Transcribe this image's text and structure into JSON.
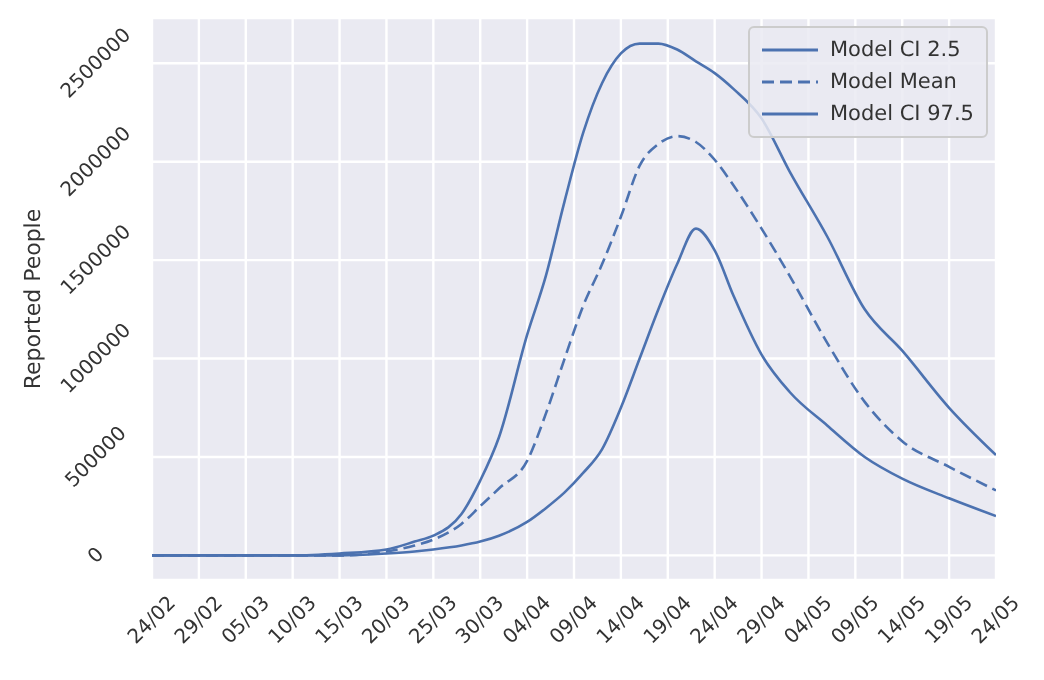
{
  "chart_data": {
    "type": "line",
    "ylabel": "Reported People",
    "x": [
      "--02-24",
      "--03-05",
      "--03-10",
      "--03-15",
      "--03-20",
      "--03-23",
      "--03-25",
      "--03-28",
      "--03-30",
      "--04-01",
      "--04-04",
      "--04-06",
      "--04-08",
      "--04-10",
      "--04-12",
      "--04-14",
      "--04-16",
      "--04-18",
      "--04-20",
      "--04-22",
      "--04-24",
      "--04-26",
      "--04-29",
      "--05-02",
      "--05-06",
      "--05-10",
      "--05-14",
      "--05-19",
      "--05-24"
    ],
    "series": [
      {
        "name": "Model CI 2.5",
        "color": "#4c72b0",
        "line_style": "solid",
        "values": [
          0,
          0,
          0,
          0,
          10000,
          20000,
          30000,
          50000,
          70000,
          100000,
          170000,
          240000,
          320000,
          420000,
          540000,
          750000,
          1000000,
          1250000,
          1480000,
          1660000,
          1550000,
          1320000,
          1020000,
          830000,
          660000,
          500000,
          390000,
          290000,
          200000
        ]
      },
      {
        "name": "Model Mean",
        "color": "#4c72b0",
        "line_style": "dashed",
        "values": [
          0,
          0,
          0,
          0,
          20000,
          50000,
          80000,
          160000,
          250000,
          340000,
          480000,
          720000,
          1000000,
          1270000,
          1480000,
          1720000,
          1980000,
          2090000,
          2130000,
          2100000,
          2010000,
          1880000,
          1660000,
          1420000,
          1080000,
          780000,
          580000,
          450000,
          330000
        ]
      },
      {
        "name": "Model CI 97.5",
        "color": "#4c72b0",
        "line_style": "solid",
        "values": [
          0,
          0,
          0,
          10000,
          30000,
          70000,
          100000,
          210000,
          380000,
          600000,
          1120000,
          1420000,
          1800000,
          2150000,
          2400000,
          2550000,
          2600000,
          2600000,
          2570000,
          2510000,
          2450000,
          2370000,
          2220000,
          1950000,
          1620000,
          1250000,
          1040000,
          750000,
          510000
        ]
      }
    ],
    "xlim": [
      "--02-24",
      "--05-24"
    ],
    "xticks": [
      {
        "value": "--02-24",
        "label": "24/02"
      },
      {
        "value": "--02-29",
        "label": "29/02"
      },
      {
        "value": "--03-05",
        "label": "05/03"
      },
      {
        "value": "--03-10",
        "label": "10/03"
      },
      {
        "value": "--03-15",
        "label": "15/03"
      },
      {
        "value": "--03-20",
        "label": "20/03"
      },
      {
        "value": "--03-25",
        "label": "25/03"
      },
      {
        "value": "--03-30",
        "label": "30/03"
      },
      {
        "value": "--04-04",
        "label": "04/04"
      },
      {
        "value": "--04-09",
        "label": "09/04"
      },
      {
        "value": "--04-14",
        "label": "14/04"
      },
      {
        "value": "--04-19",
        "label": "19/04"
      },
      {
        "value": "--04-24",
        "label": "24/04"
      },
      {
        "value": "--04-29",
        "label": "29/04"
      },
      {
        "value": "--05-04",
        "label": "04/05"
      },
      {
        "value": "--05-09",
        "label": "09/05"
      },
      {
        "value": "--05-14",
        "label": "14/05"
      },
      {
        "value": "--05-19",
        "label": "19/05"
      },
      {
        "value": "--05-24",
        "label": "24/05"
      }
    ],
    "ylim": [
      -125000,
      2730000
    ],
    "yticks": [
      0,
      500000,
      1000000,
      1500000,
      2000000,
      2500000
    ],
    "grid": true,
    "legend": "top right"
  }
}
